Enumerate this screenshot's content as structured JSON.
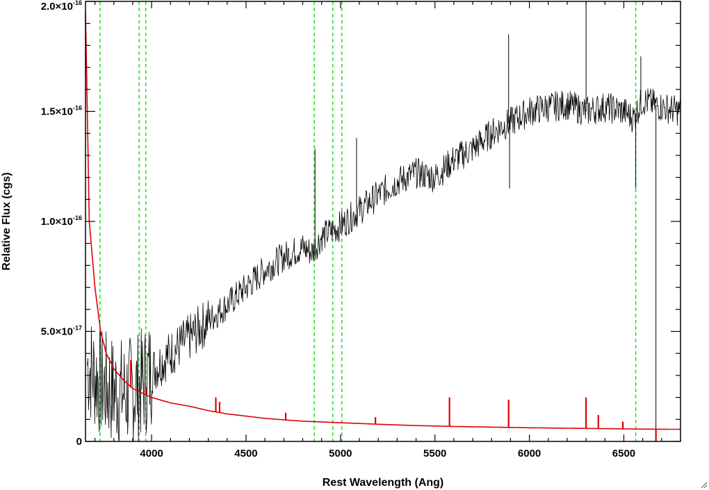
{
  "chart_data": {
    "type": "line",
    "title": "",
    "xlabel": "Rest Wavelength (Ang)",
    "ylabel": "Relative Flux (cgs)",
    "xlim": [
      3650,
      6800
    ],
    "ylim": [
      0,
      2e-16
    ],
    "x_ticks": [
      {
        "value": 4000,
        "label": "4000"
      },
      {
        "value": 4500,
        "label": "4500"
      },
      {
        "value": 5000,
        "label": "5000"
      },
      {
        "value": 5500,
        "label": "5500"
      },
      {
        "value": 6000,
        "label": "6000"
      },
      {
        "value": 6500,
        "label": "6500"
      }
    ],
    "y_ticks": [
      {
        "value": 0,
        "mantissa": "0",
        "exponent": ""
      },
      {
        "value": 5e-17,
        "mantissa": "5.0×10",
        "exponent": "-17"
      },
      {
        "value": 1e-16,
        "mantissa": "1.0×10",
        "exponent": "-16"
      },
      {
        "value": 1.5e-16,
        "mantissa": "1.5×10",
        "exponent": "-16"
      },
      {
        "value": 2e-16,
        "mantissa": "2.0×10",
        "exponent": "-16"
      }
    ],
    "reference_lines": [
      3727,
      3934,
      3969,
      4861,
      4959,
      5007,
      6563
    ],
    "series": [
      {
        "role": "spectrum",
        "color": "#000000",
        "x": [
          3660,
          3700,
          3750,
          3800,
          3850,
          3900,
          3950,
          4000,
          4100,
          4200,
          4300,
          4400,
          4500,
          4600,
          4700,
          4800,
          4850,
          4900,
          5000,
          5100,
          5200,
          5300,
          5400,
          5500,
          5600,
          5700,
          5800,
          5850,
          5900,
          6000,
          6100,
          6200,
          6300,
          6400,
          6500,
          6550,
          6600,
          6700,
          6800
        ],
        "y": [
          3.5e-17,
          3e-17,
          2.5e-17,
          2.3e-17,
          2.2e-17,
          2.3e-17,
          2.6e-17,
          3.2e-17,
          4e-17,
          4.7e-17,
          5.5e-17,
          6.2e-17,
          7e-17,
          7.8e-17,
          8.4e-17,
          8.8e-17,
          8.6e-17,
          9.3e-17,
          9.8e-17,
          1.05e-16,
          1.12e-16,
          1.18e-16,
          1.22e-16,
          1.2e-16,
          1.28e-16,
          1.33e-16,
          1.4e-16,
          1.43e-16,
          1.45e-16,
          1.5e-16,
          1.52e-16,
          1.53e-16,
          1.5e-16,
          1.52e-16,
          1.5e-16,
          1.47e-16,
          1.55e-16,
          1.52e-16,
          1.5e-16
        ],
        "spikes": [
          {
            "x": 4865,
            "y": 1.33e-16
          },
          {
            "x": 5085,
            "y": 1.38e-16
          },
          {
            "x": 5890,
            "y": 1.85e-16
          },
          {
            "x": 5895,
            "y": 1.15e-16
          },
          {
            "x": 6300,
            "y": 2e-16
          },
          {
            "x": 6563,
            "y": 1.15e-16
          },
          {
            "x": 6590,
            "y": 1.75e-16
          },
          {
            "x": 6670,
            "y": 0
          }
        ]
      },
      {
        "role": "error",
        "color": "#dd0000",
        "x": [
          3650,
          3670,
          3700,
          3730,
          3760,
          3800,
          3850,
          3900,
          3950,
          4000,
          4100,
          4200,
          4300,
          4400,
          4500,
          4600,
          4700,
          4800,
          5000,
          5200,
          5400,
          5600,
          5800,
          6000,
          6200,
          6400,
          6600,
          6800
        ],
        "y": [
          1.95e-16,
          1e-16,
          7e-17,
          5e-17,
          4e-17,
          3.3e-17,
          2.8e-17,
          2.4e-17,
          2.2e-17,
          2e-17,
          1.75e-17,
          1.6e-17,
          1.4e-17,
          1.25e-17,
          1.15e-17,
          1.05e-17,
          9.8e-18,
          9.2e-18,
          8.5e-18,
          7.8e-18,
          7.2e-18,
          6.8e-18,
          6.5e-18,
          6.2e-18,
          6e-18,
          5.8e-18,
          5.6e-18,
          5.5e-18
        ],
        "spikes": [
          {
            "x": 3890,
            "y": 3.7e-17
          },
          {
            "x": 3970,
            "y": 2.5e-17
          },
          {
            "x": 4340,
            "y": 2e-17
          },
          {
            "x": 4360,
            "y": 1.8e-17
          },
          {
            "x": 4710,
            "y": 1.3e-17
          },
          {
            "x": 5185,
            "y": 1.1e-17
          },
          {
            "x": 5577,
            "y": 2e-17
          },
          {
            "x": 5890,
            "y": 1.9e-17
          },
          {
            "x": 6300,
            "y": 2e-17
          },
          {
            "x": 6365,
            "y": 1.2e-17
          },
          {
            "x": 6495,
            "y": 9e-18
          },
          {
            "x": 6670,
            "y": 0
          }
        ]
      }
    ]
  }
}
